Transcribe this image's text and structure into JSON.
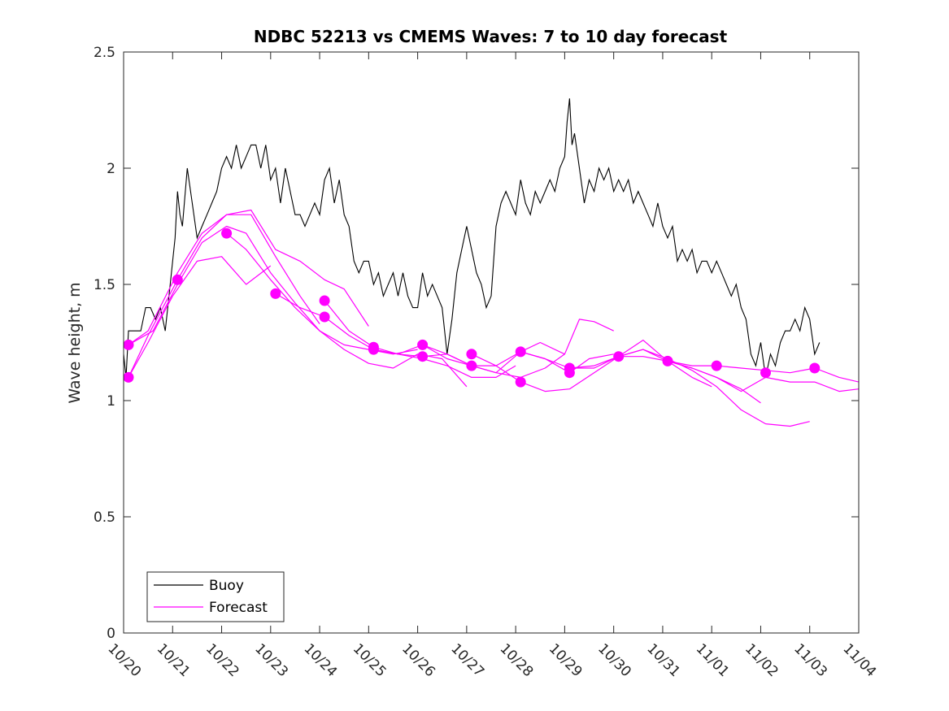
{
  "chart_data": {
    "type": "line",
    "title": "NDBC 52213 vs CMEMS Waves: 7 to 10 day forecast",
    "xlabel": "",
    "ylabel": "Wave height, m",
    "xlim": [
      0,
      15
    ],
    "ylim": [
      0,
      2.5
    ],
    "x_ticks": [
      0,
      1,
      2,
      3,
      4,
      5,
      6,
      7,
      8,
      9,
      10,
      11,
      12,
      13,
      14,
      15
    ],
    "x_tick_labels": [
      "10/20",
      "10/21",
      "10/22",
      "10/23",
      "10/24",
      "10/25",
      "10/26",
      "10/27",
      "10/28",
      "10/29",
      "10/30",
      "10/31",
      "11/01",
      "11/02",
      "11/03",
      "11/04"
    ],
    "y_ticks": [
      0,
      0.5,
      1,
      1.5,
      2,
      2.5
    ],
    "y_tick_labels": [
      "0",
      "0.5",
      "1",
      "1.5",
      "2",
      "2.5"
    ],
    "legend": {
      "position": "bottom-left",
      "entries": [
        "Buoy",
        "Forecast"
      ]
    },
    "colors": {
      "buoy": "#000000",
      "forecast": "#ff00ff"
    },
    "series": [
      {
        "name": "Buoy",
        "x": [
          0,
          0.05,
          0.1,
          0.15,
          0.25,
          0.35,
          0.45,
          0.55,
          0.65,
          0.75,
          0.85,
          0.95,
          1.0,
          1.05,
          1.1,
          1.15,
          1.2,
          1.3,
          1.4,
          1.5,
          1.6,
          1.7,
          1.8,
          1.9,
          2.0,
          2.1,
          2.2,
          2.3,
          2.4,
          2.5,
          2.6,
          2.7,
          2.8,
          2.9,
          3.0,
          3.1,
          3.2,
          3.3,
          3.4,
          3.5,
          3.6,
          3.7,
          3.8,
          3.9,
          4.0,
          4.1,
          4.2,
          4.3,
          4.4,
          4.5,
          4.6,
          4.7,
          4.8,
          4.9,
          5.0,
          5.1,
          5.2,
          5.3,
          5.4,
          5.5,
          5.6,
          5.7,
          5.8,
          5.9,
          6.0,
          6.1,
          6.2,
          6.3,
          6.4,
          6.5,
          6.6,
          6.7,
          6.8,
          6.9,
          7.0,
          7.1,
          7.2,
          7.3,
          7.4,
          7.5,
          7.6,
          7.7,
          7.8,
          7.9,
          8.0,
          8.1,
          8.2,
          8.3,
          8.4,
          8.5,
          8.6,
          8.7,
          8.8,
          8.9,
          9.0,
          9.05,
          9.1,
          9.15,
          9.2,
          9.3,
          9.4,
          9.5,
          9.6,
          9.7,
          9.8,
          9.9,
          10.0,
          10.1,
          10.2,
          10.3,
          10.4,
          10.5,
          10.6,
          10.7,
          10.8,
          10.9,
          11.0,
          11.1,
          11.2,
          11.3,
          11.4,
          11.5,
          11.6,
          11.7,
          11.8,
          11.9,
          12.0,
          12.1,
          12.2,
          12.3,
          12.4,
          12.5,
          12.6,
          12.7,
          12.8,
          12.9,
          13.0,
          13.1,
          13.2,
          13.3,
          13.4,
          13.5,
          13.6,
          13.7,
          13.8,
          13.9,
          14.0,
          14.1,
          14.2
        ],
        "values": [
          1.2,
          1.1,
          1.3,
          1.3,
          1.3,
          1.3,
          1.4,
          1.4,
          1.35,
          1.4,
          1.3,
          1.5,
          1.6,
          1.7,
          1.9,
          1.8,
          1.75,
          2.0,
          1.85,
          1.7,
          1.75,
          1.8,
          1.85,
          1.9,
          2.0,
          2.05,
          2.0,
          2.1,
          2.0,
          2.05,
          2.1,
          2.1,
          2.0,
          2.1,
          1.95,
          2.0,
          1.85,
          2.0,
          1.9,
          1.8,
          1.8,
          1.75,
          1.8,
          1.85,
          1.8,
          1.95,
          2.0,
          1.85,
          1.95,
          1.8,
          1.75,
          1.6,
          1.55,
          1.6,
          1.6,
          1.5,
          1.55,
          1.45,
          1.5,
          1.55,
          1.45,
          1.55,
          1.45,
          1.4,
          1.4,
          1.55,
          1.45,
          1.5,
          1.45,
          1.4,
          1.2,
          1.35,
          1.55,
          1.65,
          1.75,
          1.65,
          1.55,
          1.5,
          1.4,
          1.45,
          1.75,
          1.85,
          1.9,
          1.85,
          1.8,
          1.95,
          1.85,
          1.8,
          1.9,
          1.85,
          1.9,
          1.95,
          1.9,
          2.0,
          2.05,
          2.2,
          2.3,
          2.1,
          2.15,
          2.0,
          1.85,
          1.95,
          1.9,
          2.0,
          1.95,
          2.0,
          1.9,
          1.95,
          1.9,
          1.95,
          1.85,
          1.9,
          1.85,
          1.8,
          1.75,
          1.85,
          1.75,
          1.7,
          1.75,
          1.6,
          1.65,
          1.6,
          1.65,
          1.55,
          1.6,
          1.6,
          1.55,
          1.6,
          1.55,
          1.5,
          1.45,
          1.5,
          1.4,
          1.35,
          1.2,
          1.15,
          1.25,
          1.1,
          1.2,
          1.15,
          1.25,
          1.3,
          1.3,
          1.35,
          1.3,
          1.4,
          1.35,
          1.2,
          1.25
        ]
      },
      {
        "name": "Forecast",
        "x": [
          0.1,
          0.5,
          1.0,
          1.5,
          2.0,
          2.5,
          3.0
        ],
        "values": [
          1.1,
          1.25,
          1.45,
          1.6,
          1.62,
          1.5,
          1.58
        ]
      },
      {
        "name": "Forecast",
        "x": [
          0.1,
          0.5,
          1.1,
          1.6,
          2.1,
          2.6,
          3.1,
          3.6,
          4.0
        ],
        "values": [
          1.1,
          1.28,
          1.52,
          1.7,
          1.8,
          1.8,
          1.62,
          1.45,
          1.33
        ]
      },
      {
        "name": "Forecast",
        "x": [
          0.1,
          0.5,
          1.1,
          1.6,
          2.1,
          2.6,
          3.1,
          3.6,
          4.1,
          4.5,
          5.0
        ],
        "values": [
          1.24,
          1.3,
          1.55,
          1.72,
          1.8,
          1.82,
          1.65,
          1.6,
          1.52,
          1.48,
          1.32
        ]
      },
      {
        "name": "Forecast",
        "x": [
          0.1,
          0.6,
          1.1,
          1.6,
          2.1,
          2.5,
          3.0,
          3.5,
          4.0,
          4.5,
          5.0,
          5.5,
          6.0
        ],
        "values": [
          1.24,
          1.3,
          1.5,
          1.68,
          1.75,
          1.72,
          1.55,
          1.42,
          1.3,
          1.24,
          1.22,
          1.2,
          1.22
        ]
      },
      {
        "name": "Forecast",
        "x": [
          2.1,
          2.5,
          3.0,
          3.5,
          4.0,
          4.5,
          5.0,
          5.5,
          6.0,
          6.5,
          7.0
        ],
        "values": [
          1.72,
          1.65,
          1.52,
          1.4,
          1.3,
          1.22,
          1.16,
          1.14,
          1.2,
          1.18,
          1.06
        ]
      },
      {
        "name": "Forecast",
        "x": [
          3.1,
          3.6,
          4.1,
          4.6,
          5.1,
          5.6,
          6.1,
          6.6,
          7.1,
          7.6,
          8.0
        ],
        "values": [
          1.46,
          1.4,
          1.36,
          1.28,
          1.22,
          1.2,
          1.18,
          1.15,
          1.1,
          1.1,
          1.15
        ]
      },
      {
        "name": "Forecast",
        "x": [
          4.1,
          4.6,
          5.1,
          5.6,
          6.1,
          6.6,
          7.1,
          7.6,
          8.1,
          8.6,
          9.0
        ],
        "values": [
          1.43,
          1.3,
          1.23,
          1.2,
          1.24,
          1.2,
          1.15,
          1.12,
          1.1,
          1.14,
          1.2
        ]
      },
      {
        "name": "Forecast",
        "x": [
          5.1,
          5.6,
          6.1,
          6.6,
          7.1,
          7.6,
          8.1,
          8.6,
          9.1,
          9.5,
          10.0
        ],
        "values": [
          1.22,
          1.2,
          1.19,
          1.2,
          1.15,
          1.15,
          1.21,
          1.18,
          1.12,
          1.18,
          1.2
        ]
      },
      {
        "name": "Forecast",
        "x": [
          6.1,
          6.6,
          7.1,
          7.6,
          8.1,
          8.5,
          9.0,
          9.3,
          9.6,
          10.0
        ],
        "values": [
          1.24,
          1.18,
          1.15,
          1.12,
          1.21,
          1.25,
          1.2,
          1.35,
          1.34,
          1.3
        ]
      },
      {
        "name": "Forecast",
        "x": [
          7.1,
          7.6,
          8.1,
          8.6,
          9.1,
          9.6,
          10.1,
          10.6,
          11.1,
          11.6,
          12.0
        ],
        "values": [
          1.2,
          1.15,
          1.08,
          1.04,
          1.05,
          1.12,
          1.19,
          1.22,
          1.17,
          1.1,
          1.06
        ]
      },
      {
        "name": "Forecast",
        "x": [
          8.1,
          8.6,
          9.1,
          9.6,
          10.1,
          10.6,
          11.1,
          11.6,
          12.1,
          12.6,
          13.0
        ],
        "values": [
          1.21,
          1.18,
          1.14,
          1.14,
          1.19,
          1.26,
          1.17,
          1.14,
          1.1,
          1.05,
          0.99
        ]
      },
      {
        "name": "Forecast",
        "x": [
          9.1,
          9.6,
          10.1,
          10.6,
          11.1,
          11.6,
          12.1,
          12.6,
          13.1,
          13.6,
          14.0
        ],
        "values": [
          1.14,
          1.15,
          1.19,
          1.22,
          1.18,
          1.13,
          1.06,
          0.96,
          0.9,
          0.89,
          0.91
        ]
      },
      {
        "name": "Forecast",
        "x": [
          10.1,
          10.6,
          11.1,
          11.6,
          12.1,
          12.6,
          13.1,
          13.6,
          14.1,
          14.6,
          15.0
        ],
        "values": [
          1.19,
          1.19,
          1.17,
          1.14,
          1.1,
          1.04,
          1.1,
          1.08,
          1.08,
          1.04,
          1.05
        ]
      },
      {
        "name": "Forecast",
        "x": [
          11.1,
          11.6,
          12.1,
          12.6,
          13.1,
          13.6,
          14.1,
          14.6,
          15.0
        ],
        "values": [
          1.17,
          1.15,
          1.15,
          1.14,
          1.13,
          1.12,
          1.14,
          1.1,
          1.08
        ]
      }
    ],
    "markers": {
      "name": "Forecast start points",
      "x": [
        0.1,
        0.1,
        1.1,
        2.1,
        3.1,
        4.1,
        4.1,
        5.1,
        5.1,
        6.1,
        6.1,
        7.1,
        7.1,
        8.1,
        8.1,
        9.1,
        9.1,
        10.1,
        11.1,
        12.1,
        13.1,
        14.1
      ],
      "values": [
        1.24,
        1.1,
        1.52,
        1.72,
        1.46,
        1.43,
        1.36,
        1.23,
        1.22,
        1.24,
        1.19,
        1.2,
        1.15,
        1.21,
        1.08,
        1.14,
        1.12,
        1.19,
        1.17,
        1.15,
        1.12,
        1.14
      ]
    }
  }
}
